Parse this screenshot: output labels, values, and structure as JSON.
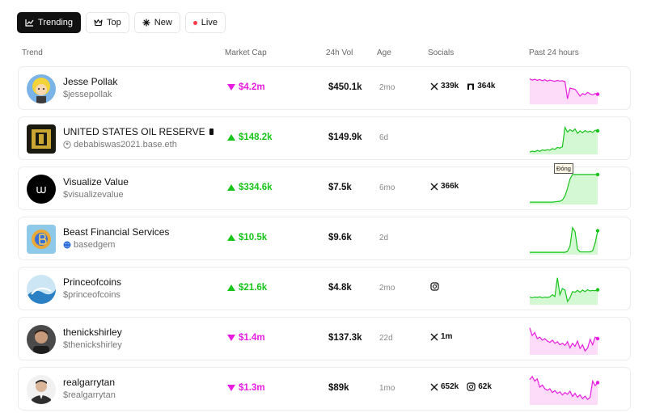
{
  "tabs": [
    {
      "label": "Trending",
      "icon": "chart-line-icon",
      "active": true
    },
    {
      "label": "Top",
      "icon": "crown-icon",
      "active": false
    },
    {
      "label": "New",
      "icon": "sparkle-icon",
      "active": false
    },
    {
      "label": "Live",
      "icon": "live-dot-icon",
      "active": false
    }
  ],
  "columns": {
    "trend": "Trend",
    "market_cap": "Market Cap",
    "volume": "24h Vol",
    "age": "Age",
    "socials": "Socials",
    "past": "Past 24 hours"
  },
  "colors": {
    "up": "#17c41a",
    "down": "#e81ce0",
    "up_fill": "#c9f5c9",
    "down_fill": "#fbd3f6"
  },
  "rows": [
    {
      "name": "Jesse Pollak",
      "handle": "$jessepollak",
      "handle_icon": "",
      "market_cap": "$4.2m",
      "direction": "down",
      "volume": "$450.1k",
      "age": "2mo",
      "socials": [
        {
          "icon": "x-icon",
          "count": "339k"
        },
        {
          "icon": "farcaster-icon",
          "count": "364k"
        }
      ],
      "spark": [
        0.8,
        0.76,
        0.79,
        0.75,
        0.78,
        0.74,
        0.77,
        0.73,
        0.76,
        0.74,
        0.72,
        0.75,
        0.73,
        0.74,
        0.71,
        0.15,
        0.5,
        0.48,
        0.46,
        0.36,
        0.24,
        0.32,
        0.29,
        0.36,
        0.31,
        0.28,
        0.32,
        0.3
      ]
    },
    {
      "name": "UNITED STATES OIL RESERVE",
      "handle": "debabiswas2021.base.eth",
      "handle_icon": "user-circle-icon",
      "market_cap": "$148.2k",
      "direction": "up",
      "volume": "$149.9k",
      "age": "6d",
      "socials": [],
      "spark": [
        0.05,
        0.08,
        0.06,
        0.1,
        0.07,
        0.12,
        0.1,
        0.13,
        0.11,
        0.16,
        0.14,
        0.2,
        0.18,
        0.22,
        0.85,
        0.7,
        0.78,
        0.72,
        0.8,
        0.66,
        0.74,
        0.68,
        0.75,
        0.7,
        0.73,
        0.69,
        0.76,
        0.74
      ]
    },
    {
      "name": "Visualize Value",
      "handle": "$visualizevalue",
      "handle_icon": "",
      "market_cap": "$334.6k",
      "direction": "up",
      "volume": "$7.5k",
      "age": "6mo",
      "socials": [
        {
          "icon": "x-icon",
          "count": "366k"
        }
      ],
      "spark": [
        0.05,
        0.05,
        0.05,
        0.05,
        0.05,
        0.05,
        0.05,
        0.05,
        0.05,
        0.05,
        0.06,
        0.07,
        0.08,
        0.12,
        0.25,
        0.5,
        0.8,
        0.95,
        0.95,
        0.95,
        0.95,
        0.95,
        0.95,
        0.95,
        0.95,
        0.95,
        0.95,
        0.95
      ]
    },
    {
      "name": "Beast Financial Services",
      "handle": "basedgem",
      "handle_icon": "globe-icon",
      "market_cap": "$10.5k",
      "direction": "up",
      "volume": "$9.6k",
      "age": "2d",
      "socials": [],
      "spark": [
        0.05,
        0.05,
        0.05,
        0.05,
        0.05,
        0.05,
        0.05,
        0.05,
        0.05,
        0.05,
        0.05,
        0.05,
        0.05,
        0.05,
        0.05,
        0.08,
        0.25,
        0.85,
        0.72,
        0.15,
        0.06,
        0.06,
        0.06,
        0.06,
        0.06,
        0.1,
        0.35,
        0.75
      ]
    },
    {
      "name": "Princeofcoins",
      "handle": "$princeofcoins",
      "handle_icon": "",
      "market_cap": "$21.6k",
      "direction": "up",
      "volume": "$4.8k",
      "age": "2mo",
      "socials": [
        {
          "icon": "instagram-icon",
          "count": ""
        }
      ],
      "spark": [
        0.22,
        0.2,
        0.22,
        0.21,
        0.23,
        0.2,
        0.22,
        0.21,
        0.23,
        0.3,
        0.24,
        0.85,
        0.3,
        0.5,
        0.45,
        0.08,
        0.2,
        0.4,
        0.38,
        0.44,
        0.38,
        0.45,
        0.4,
        0.46,
        0.42,
        0.44,
        0.43,
        0.46
      ]
    },
    {
      "name": "thenickshirley",
      "handle": "$thenickshirley",
      "handle_icon": "",
      "market_cap": "$1.4m",
      "direction": "down",
      "volume": "$137.3k",
      "age": "22d",
      "socials": [
        {
          "icon": "x-icon",
          "count": "1m"
        }
      ],
      "spark": [
        0.85,
        0.6,
        0.7,
        0.5,
        0.55,
        0.45,
        0.5,
        0.42,
        0.38,
        0.45,
        0.35,
        0.4,
        0.3,
        0.35,
        0.28,
        0.4,
        0.2,
        0.35,
        0.25,
        0.42,
        0.18,
        0.3,
        0.1,
        0.2,
        0.48,
        0.3,
        0.55,
        0.5
      ]
    },
    {
      "name": "realgarrytan",
      "handle": "$realgarrytan",
      "handle_icon": "",
      "market_cap": "$1.3m",
      "direction": "down",
      "volume": "$89k",
      "age": "1mo",
      "socials": [
        {
          "icon": "x-icon",
          "count": "652k"
        },
        {
          "icon": "instagram-icon",
          "count": "62k"
        }
      ],
      "spark": [
        0.8,
        0.9,
        0.75,
        0.82,
        0.55,
        0.62,
        0.5,
        0.45,
        0.5,
        0.38,
        0.44,
        0.35,
        0.4,
        0.3,
        0.38,
        0.32,
        0.42,
        0.25,
        0.35,
        0.22,
        0.3,
        0.18,
        0.26,
        0.15,
        0.22,
        0.75,
        0.6,
        0.7
      ]
    }
  ],
  "tooltip": {
    "row": 2,
    "text": "Đóng"
  }
}
